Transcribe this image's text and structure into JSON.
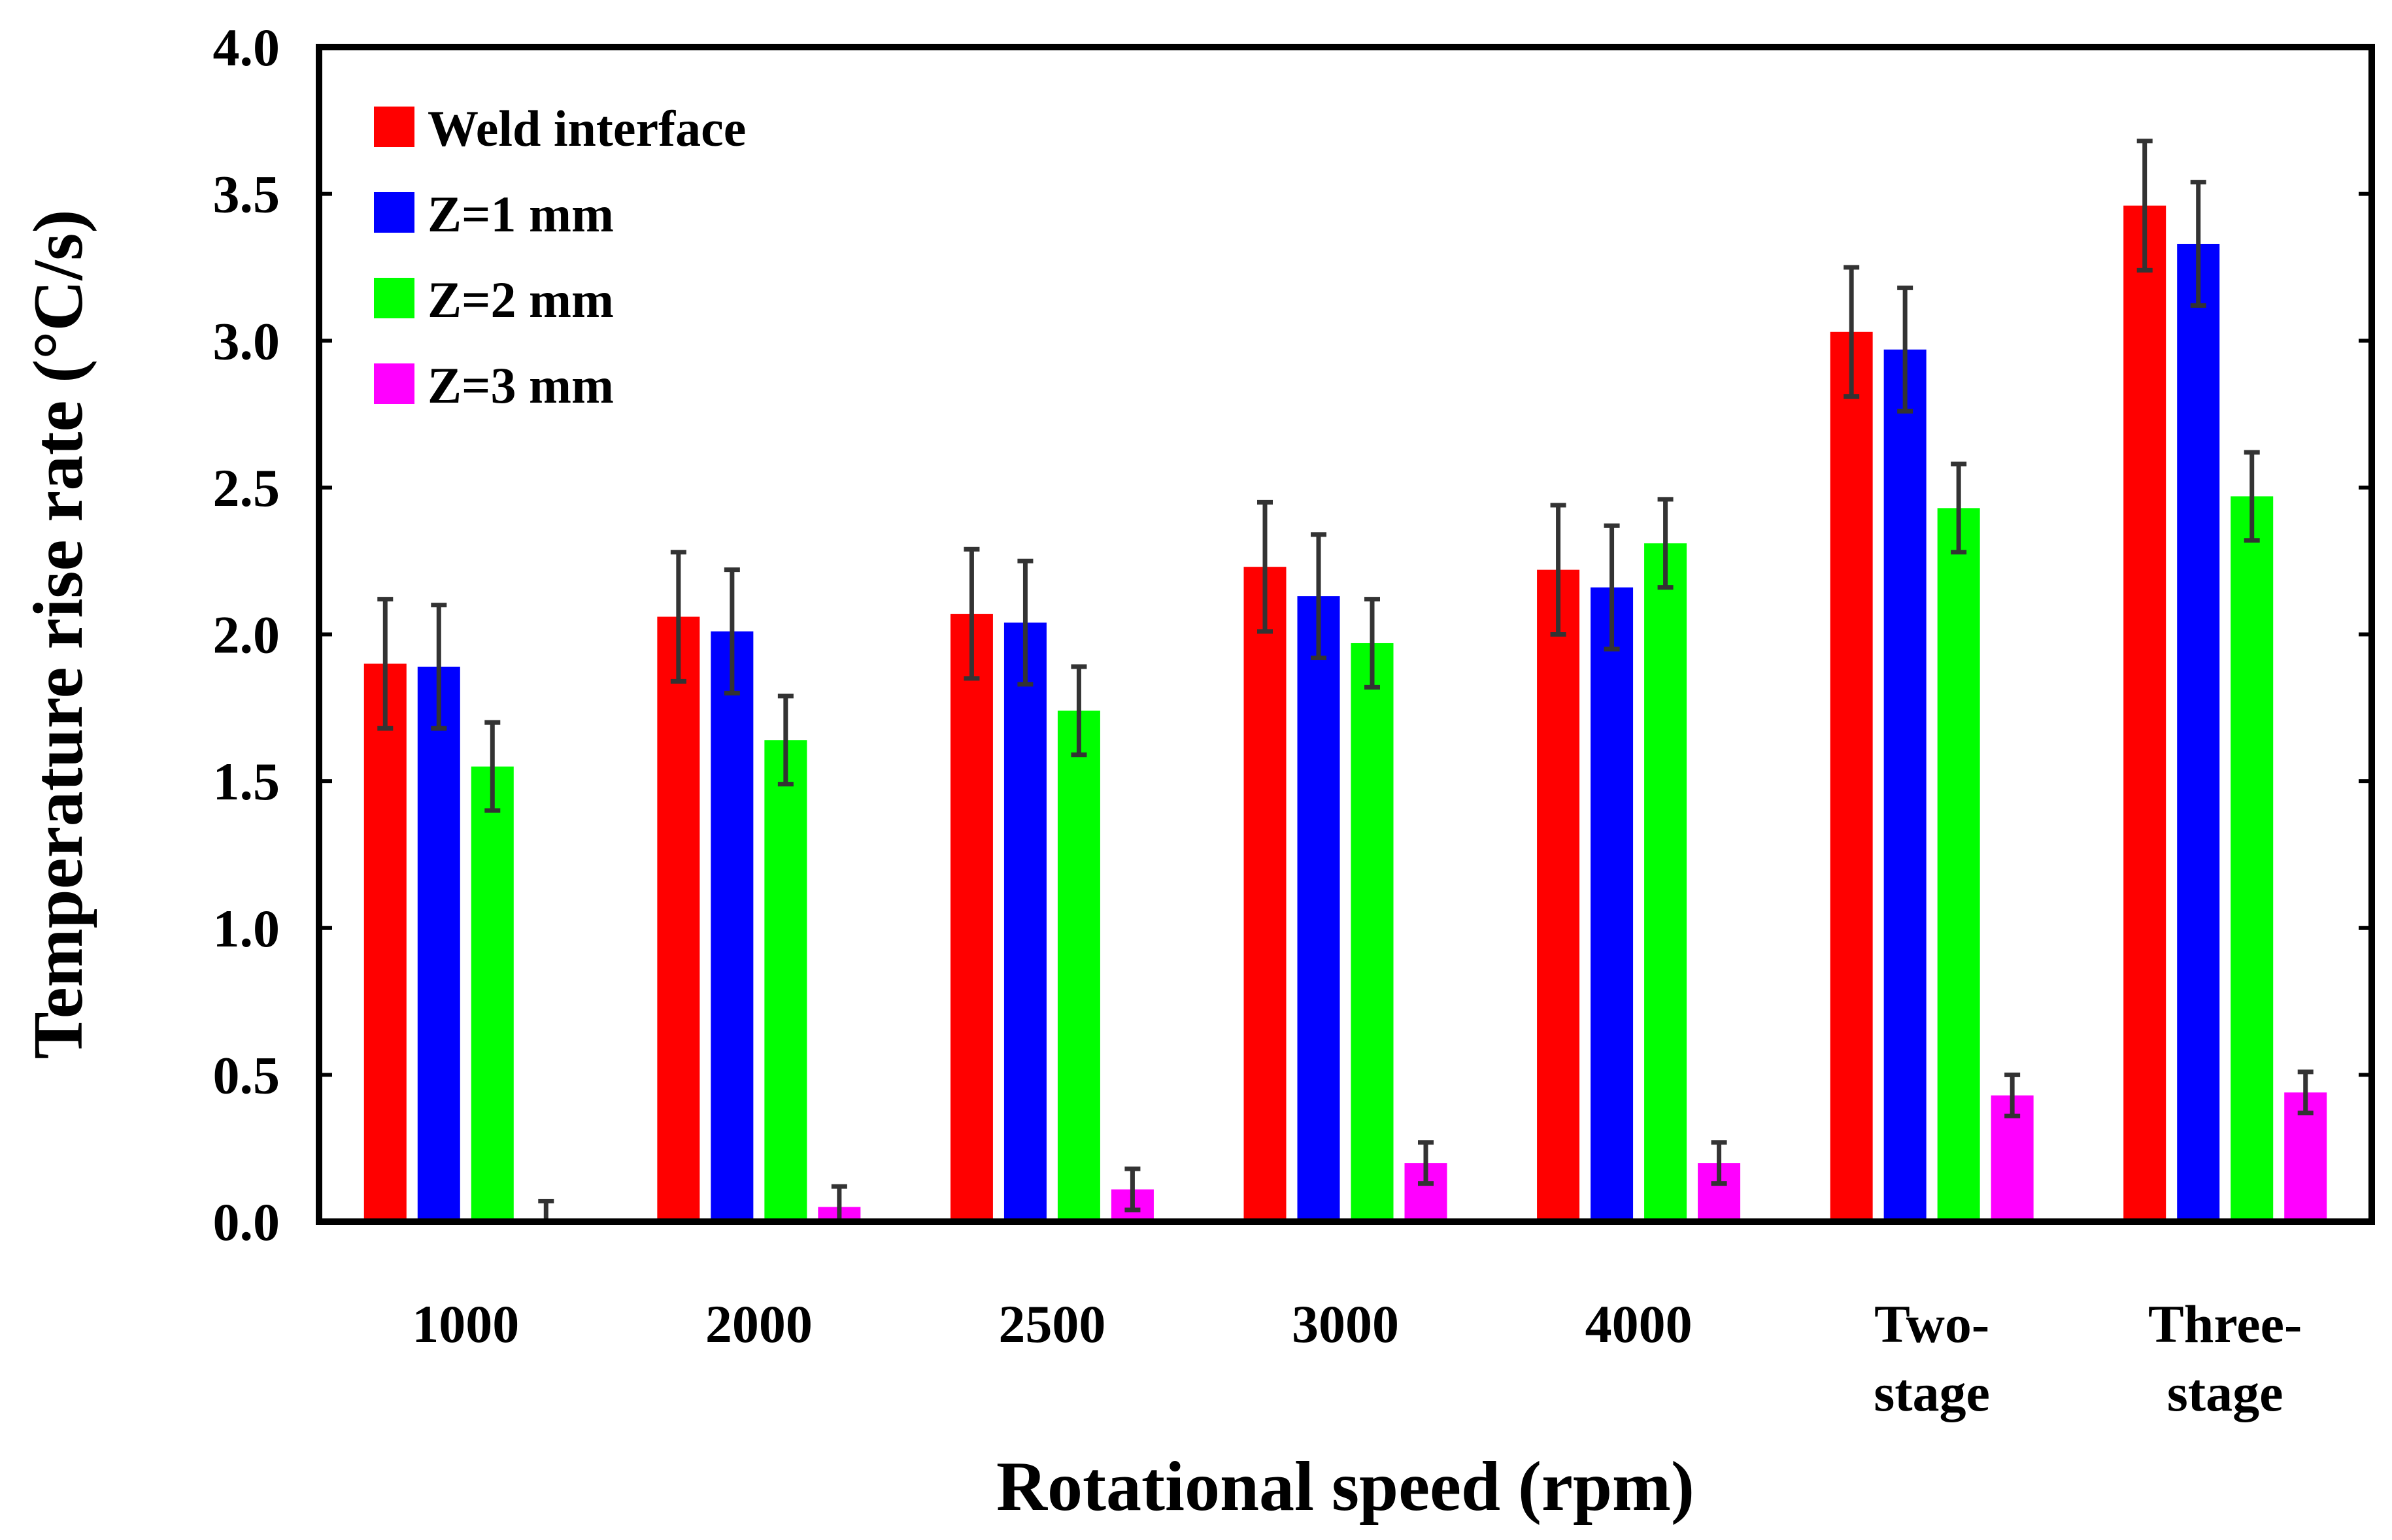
{
  "chart_data": {
    "type": "bar",
    "title": "",
    "xlabel": "Rotational speed (rpm)",
    "ylabel": "Temperature rise rate (°C/s)",
    "ylim": [
      0,
      4.0
    ],
    "yticks": [
      "0.0",
      "0.5",
      "1.0",
      "1.5",
      "2.0",
      "2.5",
      "3.0",
      "3.5",
      "4.0"
    ],
    "categories": [
      [
        "1000"
      ],
      [
        "2000"
      ],
      [
        "2500"
      ],
      [
        "3000"
      ],
      [
        "4000"
      ],
      [
        "Two-",
        "stage"
      ],
      [
        "Three-",
        "stage"
      ]
    ],
    "legend_position": "top-left",
    "grid": false,
    "series": [
      {
        "name": "Weld interface",
        "color": "#ff0000",
        "values": [
          1.9,
          2.06,
          2.07,
          2.23,
          2.22,
          3.03,
          3.46
        ],
        "errors": [
          0.22,
          0.22,
          0.22,
          0.22,
          0.22,
          0.22,
          0.22
        ]
      },
      {
        "name": "Z=1 mm",
        "color": "#0000ff",
        "values": [
          1.89,
          2.01,
          2.04,
          2.13,
          2.16,
          2.97,
          3.33
        ],
        "errors": [
          0.21,
          0.21,
          0.21,
          0.21,
          0.21,
          0.21,
          0.21
        ]
      },
      {
        "name": "Z=2 mm",
        "color": "#00ff00",
        "values": [
          1.55,
          1.64,
          1.74,
          1.97,
          2.31,
          2.43,
          2.47
        ],
        "errors": [
          0.15,
          0.15,
          0.15,
          0.15,
          0.15,
          0.15,
          0.15
        ]
      },
      {
        "name": "Z=3 mm",
        "color": "#ff00ff",
        "values": [
          0.0,
          0.05,
          0.11,
          0.2,
          0.2,
          0.43,
          0.44
        ],
        "errors": [
          0.07,
          0.07,
          0.07,
          0.07,
          0.07,
          0.07,
          0.07
        ]
      }
    ]
  }
}
